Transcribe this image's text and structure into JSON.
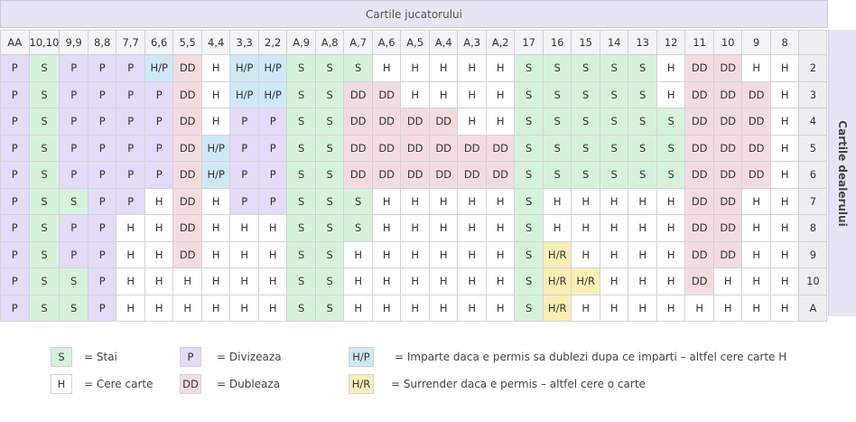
{
  "header": {
    "player_title": "Cartile jucatorului",
    "dealer_title": "Cartile dealerului"
  },
  "columns": [
    "AA",
    "10,10",
    "9,9",
    "8,8",
    "7,7",
    "6,6",
    "5,5",
    "4,4",
    "3,3",
    "2,2",
    "A,9",
    "A,8",
    "A,7",
    "A,6",
    "A,5",
    "A,4",
    "A,3",
    "A,2",
    "17",
    "16",
    "15",
    "14",
    "13",
    "12",
    "11",
    "10",
    "9",
    "8"
  ],
  "rows": [
    {
      "dealer": "2",
      "cells": [
        "P",
        "S",
        "P",
        "P",
        "P",
        "H/P",
        "DD",
        "H",
        "H/P",
        "H/P",
        "S",
        "S",
        "S",
        "H",
        "H",
        "H",
        "H",
        "H",
        "S",
        "S",
        "S",
        "S",
        "S",
        "H",
        "DD",
        "DD",
        "H",
        "H"
      ]
    },
    {
      "dealer": "3",
      "cells": [
        "P",
        "S",
        "P",
        "P",
        "P",
        "P",
        "DD",
        "H",
        "H/P",
        "H/P",
        "S",
        "S",
        "DD",
        "DD",
        "H",
        "H",
        "H",
        "H",
        "S",
        "S",
        "S",
        "S",
        "S",
        "H",
        "DD",
        "DD",
        "DD",
        "H"
      ]
    },
    {
      "dealer": "4",
      "cells": [
        "P",
        "S",
        "P",
        "P",
        "P",
        "P",
        "DD",
        "H",
        "P",
        "P",
        "S",
        "S",
        "DD",
        "DD",
        "DD",
        "DD",
        "H",
        "H",
        "S",
        "S",
        "S",
        "S",
        "S",
        "S",
        "DD",
        "DD",
        "DD",
        "H"
      ]
    },
    {
      "dealer": "5",
      "cells": [
        "P",
        "S",
        "P",
        "P",
        "P",
        "P",
        "DD",
        "H/P",
        "P",
        "P",
        "S",
        "S",
        "DD",
        "DD",
        "DD",
        "DD",
        "DD",
        "DD",
        "S",
        "S",
        "S",
        "S",
        "S",
        "S",
        "DD",
        "DD",
        "DD",
        "H"
      ]
    },
    {
      "dealer": "6",
      "cells": [
        "P",
        "S",
        "P",
        "P",
        "P",
        "P",
        "DD",
        "H/P",
        "P",
        "P",
        "S",
        "S",
        "DD",
        "DD",
        "DD",
        "DD",
        "DD",
        "DD",
        "S",
        "S",
        "S",
        "S",
        "S",
        "S",
        "DD",
        "DD",
        "DD",
        "H"
      ]
    },
    {
      "dealer": "7",
      "cells": [
        "P",
        "S",
        "S",
        "P",
        "P",
        "H",
        "DD",
        "H",
        "P",
        "P",
        "S",
        "S",
        "S",
        "H",
        "H",
        "H",
        "H",
        "H",
        "S",
        "H",
        "H",
        "H",
        "H",
        "H",
        "DD",
        "DD",
        "H",
        "H"
      ]
    },
    {
      "dealer": "8",
      "cells": [
        "P",
        "S",
        "P",
        "P",
        "H",
        "H",
        "DD",
        "H",
        "H",
        "H",
        "S",
        "S",
        "S",
        "H",
        "H",
        "H",
        "H",
        "H",
        "S",
        "H",
        "H",
        "H",
        "H",
        "H",
        "DD",
        "DD",
        "H",
        "H"
      ]
    },
    {
      "dealer": "9",
      "cells": [
        "P",
        "S",
        "P",
        "P",
        "H",
        "H",
        "DD",
        "H",
        "H",
        "H",
        "S",
        "S",
        "H",
        "H",
        "H",
        "H",
        "H",
        "H",
        "S",
        "H/R",
        "H",
        "H",
        "H",
        "H",
        "DD",
        "DD",
        "H",
        "H"
      ]
    },
    {
      "dealer": "10",
      "cells": [
        "P",
        "S",
        "S",
        "P",
        "H",
        "H",
        "H",
        "H",
        "H",
        "H",
        "S",
        "S",
        "H",
        "H",
        "H",
        "H",
        "H",
        "H",
        "S",
        "H/R",
        "H/R",
        "H",
        "H",
        "H",
        "DD",
        "H",
        "H",
        "H"
      ]
    },
    {
      "dealer": "A",
      "cells": [
        "P",
        "S",
        "S",
        "P",
        "H",
        "H",
        "H",
        "H",
        "H",
        "H",
        "S",
        "S",
        "H",
        "H",
        "H",
        "H",
        "H",
        "H",
        "S",
        "H/R",
        "H",
        "H",
        "H",
        "H",
        "H",
        "H",
        "H",
        "H"
      ]
    }
  ],
  "legend": [
    {
      "code": "S",
      "label": "= Stai"
    },
    {
      "code": "H",
      "label": "= Cere carte"
    },
    {
      "code": "P",
      "label": "= Divizeaza"
    },
    {
      "code": "DD",
      "label": "= Dubleaza"
    },
    {
      "code": "H/P",
      "label": "= Imparte daca e permis sa dublezi dupa ce imparti – altfel cere carte H"
    },
    {
      "code": "H/R",
      "label": "= Surrender daca e permis – altfel cere o carte"
    }
  ],
  "colors": {
    "S": "#d7f2dc",
    "H": "#ffffff",
    "P": "#e3dbf7",
    "DD": "#f3dcdf",
    "H/P": "#cfe8f6",
    "H/R": "#faefb5",
    "header_bg": "#e4e6f3"
  }
}
